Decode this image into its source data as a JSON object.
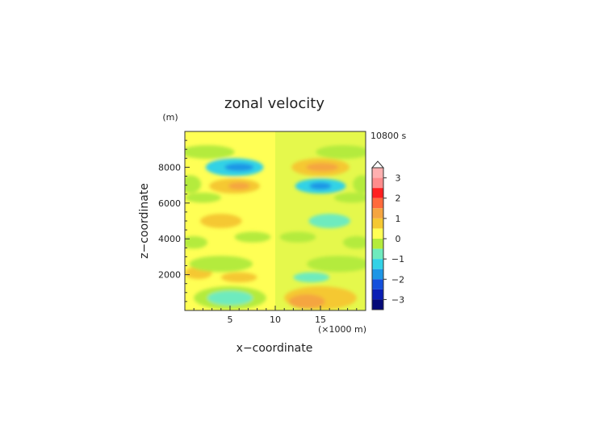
{
  "chart_data": {
    "type": "heatmap",
    "title": "zonal velocity",
    "xlabel": "x−coordinate",
    "ylabel": "z−coordinate",
    "x_unit": "(×1000 m)",
    "y_unit": "(m)",
    "time_label": "10800 s",
    "xlim": [
      0,
      20
    ],
    "ylim": [
      0,
      10000
    ],
    "x_ticks": [
      "5",
      "10",
      "15"
    ],
    "x_tick_values": [
      5,
      10,
      15
    ],
    "y_ticks": [
      "2000",
      "4000",
      "6000",
      "8000"
    ],
    "y_tick_values": [
      2000,
      4000,
      6000,
      8000
    ],
    "background_level": "0 to 0.5",
    "colorbar": {
      "tick_labels": [
        "3",
        "2",
        "1",
        "0",
        "−1",
        "−2",
        "−3"
      ],
      "tick_values": [
        3,
        2,
        1,
        0,
        -1,
        -2,
        -3
      ],
      "levels": [
        {
          "min": 3.0,
          "max": 3.5,
          "color": "#ffb0b0"
        },
        {
          "min": 2.5,
          "max": 3.0,
          "color": "#ff8c8c"
        },
        {
          "min": 2.0,
          "max": 2.5,
          "color": "#ff2020"
        },
        {
          "min": 1.5,
          "max": 2.0,
          "color": "#ff6a3c"
        },
        {
          "min": 1.0,
          "max": 1.5,
          "color": "#f5a540"
        },
        {
          "min": 0.5,
          "max": 1.0,
          "color": "#f5c832"
        },
        {
          "min": 0.0,
          "max": 0.5,
          "color": "#ffff55"
        },
        {
          "min": -0.5,
          "max": 0.0,
          "color": "#b4eb3c"
        },
        {
          "min": -1.0,
          "max": -0.5,
          "color": "#6eebbe"
        },
        {
          "min": -1.5,
          "max": -1.0,
          "color": "#32d2e6"
        },
        {
          "min": -2.0,
          "max": -1.5,
          "color": "#1e96e6"
        },
        {
          "min": -2.5,
          "max": -2.0,
          "color": "#1450dc"
        },
        {
          "min": -3.0,
          "max": -2.5,
          "color": "#0a1eb4"
        },
        {
          "min": -3.5,
          "max": -3.0,
          "color": "#050a78"
        }
      ]
    },
    "features": [
      {
        "x": 5.5,
        "z": 8000,
        "rx": 3.2,
        "rz": 500,
        "value": -1.2
      },
      {
        "x": 6.0,
        "z": 8000,
        "rx": 1.6,
        "rz": 220,
        "value": -1.7
      },
      {
        "x": 15.0,
        "z": 8000,
        "rx": 3.2,
        "rz": 500,
        "value": 0.8
      },
      {
        "x": 15.2,
        "z": 8000,
        "rx": 1.8,
        "rz": 230,
        "value": 1.2
      },
      {
        "x": 5.5,
        "z": 6950,
        "rx": 2.8,
        "rz": 420,
        "value": 0.8
      },
      {
        "x": 6.0,
        "z": 6950,
        "rx": 1.2,
        "rz": 200,
        "value": 1.2
      },
      {
        "x": 15.0,
        "z": 6950,
        "rx": 2.8,
        "rz": 420,
        "value": -1.2
      },
      {
        "x": 15.0,
        "z": 6950,
        "rx": 1.2,
        "rz": 200,
        "value": -1.7
      },
      {
        "x": 2.5,
        "z": 8850,
        "rx": 3.0,
        "rz": 380,
        "value": -0.2
      },
      {
        "x": 17.5,
        "z": 8850,
        "rx": 3.0,
        "rz": 380,
        "value": -0.2
      },
      {
        "x": 0.6,
        "z": 7050,
        "rx": 1.2,
        "rz": 500,
        "value": -0.2
      },
      {
        "x": 19.6,
        "z": 7050,
        "rx": 1.0,
        "rz": 500,
        "value": -0.2
      },
      {
        "x": 2.0,
        "z": 6300,
        "rx": 2.0,
        "rz": 280,
        "value": -0.2
      },
      {
        "x": 18.5,
        "z": 6300,
        "rx": 2.0,
        "rz": 280,
        "value": -0.2
      },
      {
        "x": 4.0,
        "z": 5000,
        "rx": 2.3,
        "rz": 400,
        "value": 0.8
      },
      {
        "x": 16.0,
        "z": 5000,
        "rx": 2.3,
        "rz": 400,
        "value": -0.8
      },
      {
        "x": 7.5,
        "z": 4100,
        "rx": 2.0,
        "rz": 300,
        "value": -0.2
      },
      {
        "x": 12.5,
        "z": 4100,
        "rx": 2.0,
        "rz": 300,
        "value": -0.2
      },
      {
        "x": 1.0,
        "z": 3800,
        "rx": 1.5,
        "rz": 350,
        "value": -0.2
      },
      {
        "x": 19.0,
        "z": 3800,
        "rx": 1.5,
        "rz": 350,
        "value": -0.2
      },
      {
        "x": 1.5,
        "z": 2100,
        "rx": 1.5,
        "rz": 350,
        "value": 0.8
      },
      {
        "x": 6.0,
        "z": 1850,
        "rx": 2.0,
        "rz": 280,
        "value": 0.8
      },
      {
        "x": 14.0,
        "z": 1850,
        "rx": 2.0,
        "rz": 280,
        "value": -0.8
      },
      {
        "x": 17.0,
        "z": 2600,
        "rx": 3.5,
        "rz": 450,
        "value": -0.2
      },
      {
        "x": 4.0,
        "z": 2600,
        "rx": 3.5,
        "rz": 450,
        "value": -0.2
      },
      {
        "x": 5.0,
        "z": 700,
        "rx": 4.0,
        "rz": 650,
        "value": -0.2
      },
      {
        "x": 5.0,
        "z": 700,
        "rx": 2.5,
        "rz": 400,
        "value": -0.8
      },
      {
        "x": 15.0,
        "z": 700,
        "rx": 4.0,
        "rz": 650,
        "value": 0.8
      },
      {
        "x": 13.5,
        "z": 500,
        "rx": 2.0,
        "rz": 400,
        "value": 1.2
      }
    ]
  }
}
